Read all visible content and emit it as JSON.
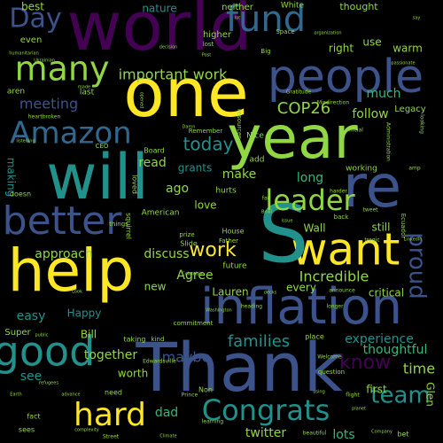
{
  "palette": {
    "background": "#000000",
    "purple": "#440154",
    "indigo": "#3b528b",
    "blue": "#31688e",
    "teal": "#21918c",
    "green": "#35b779",
    "lime": "#90d743",
    "yellow": "#fde725"
  },
  "words": [
    {
      "text": "world",
      "color": "purple",
      "weight": 100
    },
    {
      "text": "Day",
      "color": "indigo",
      "weight": 38
    },
    {
      "text": "fund",
      "color": "blue",
      "weight": 46
    },
    {
      "text": "many",
      "color": "lime",
      "weight": 44
    },
    {
      "text": "people",
      "color": "indigo",
      "weight": 62
    },
    {
      "text": "one",
      "color": "yellow",
      "weight": 92
    },
    {
      "text": "year",
      "color": "lime",
      "weight": 80
    },
    {
      "text": "will",
      "color": "teal",
      "weight": 84
    },
    {
      "text": "re",
      "color": "indigo",
      "weight": 80
    },
    {
      "text": "Amazon",
      "color": "blue",
      "weight": 40
    },
    {
      "text": "better",
      "color": "indigo",
      "weight": 54
    },
    {
      "text": "want",
      "color": "yellow",
      "weight": 58
    },
    {
      "text": "S",
      "color": "teal",
      "weight": 100
    },
    {
      "text": "help",
      "color": "yellow",
      "weight": 80
    },
    {
      "text": "inflation",
      "color": "indigo",
      "weight": 66
    },
    {
      "text": "good",
      "color": "teal",
      "weight": 52
    },
    {
      "text": "Thank",
      "color": "indigo",
      "weight": 100
    },
    {
      "text": "hard",
      "color": "yellow",
      "weight": 46
    },
    {
      "text": "Congrats",
      "color": "teal",
      "weight": 40
    },
    {
      "text": "leader",
      "color": "lime",
      "weight": 38
    },
    {
      "text": "proud",
      "color": "indigo",
      "weight": 34
    },
    {
      "text": "team",
      "color": "teal",
      "weight": 30
    },
    {
      "text": "know",
      "color": "purple",
      "weight": 28
    },
    {
      "text": "important work",
      "color": "lime",
      "weight": 20
    },
    {
      "text": "meeting",
      "color": "indigo",
      "weight": 20
    },
    {
      "text": "COP26",
      "color": "lime",
      "weight": 22
    },
    {
      "text": "today",
      "color": "teal",
      "weight": 24
    },
    {
      "text": "families",
      "color": "teal",
      "weight": 22
    },
    {
      "text": "work",
      "color": "yellow",
      "weight": 24
    },
    {
      "text": "Incredible",
      "color": "lime",
      "weight": 20
    },
    {
      "text": "follow",
      "color": "lime",
      "weight": 18
    },
    {
      "text": "long",
      "color": "green",
      "weight": 18
    },
    {
      "text": "much",
      "color": "green",
      "weight": 16
    },
    {
      "text": "approach",
      "color": "lime",
      "weight": 16
    },
    {
      "text": "discuss",
      "color": "lime",
      "weight": 16
    },
    {
      "text": "Agree",
      "color": "lime",
      "weight": 16
    },
    {
      "text": "together",
      "color": "lime",
      "weight": 16
    },
    {
      "text": "worth",
      "color": "lime",
      "weight": 14
    },
    {
      "text": "easy",
      "color": "teal",
      "weight": 18
    },
    {
      "text": "time",
      "color": "lime",
      "weight": 20
    },
    {
      "text": "experience",
      "color": "teal",
      "weight": 16
    },
    {
      "text": "thoughtful",
      "color": "green",
      "weight": 16
    },
    {
      "text": "twitter",
      "color": "lime",
      "weight": 16
    },
    {
      "text": "lots",
      "color": "green",
      "weight": 16
    },
    {
      "text": "see",
      "color": "teal",
      "weight": 16
    },
    {
      "text": "maybe",
      "color": "indigo",
      "weight": 20
    },
    {
      "text": "dad",
      "color": "green",
      "weight": 14
    },
    {
      "text": "Lauren",
      "color": "lime",
      "weight": 14
    },
    {
      "text": "Bill",
      "color": "lime",
      "weight": 14
    },
    {
      "text": "Happy",
      "color": "teal",
      "weight": 14
    },
    {
      "text": "Wall",
      "color": "lime",
      "weight": 12
    },
    {
      "text": "still",
      "color": "lime",
      "weight": 14
    },
    {
      "text": "grants",
      "color": "teal",
      "weight": 12
    },
    {
      "text": "make",
      "color": "lime",
      "weight": 14
    },
    {
      "text": "read",
      "color": "lime",
      "weight": 14
    },
    {
      "text": "ago",
      "color": "lime",
      "weight": 14
    },
    {
      "text": "making",
      "color": "teal",
      "weight": 12
    },
    {
      "text": "love",
      "color": "lime",
      "weight": 12
    },
    {
      "text": "new",
      "color": "lime",
      "weight": 12
    },
    {
      "text": "every",
      "color": "lime",
      "weight": 12
    },
    {
      "text": "first",
      "color": "lime",
      "weight": 12
    },
    {
      "text": "critical",
      "color": "lime",
      "weight": 12
    },
    {
      "text": "Glen",
      "color": "lime",
      "weight": 12
    },
    {
      "text": "best",
      "color": "lime",
      "weight": 12
    },
    {
      "text": "nature",
      "color": "teal",
      "weight": 12
    },
    {
      "text": "neither",
      "color": "lime",
      "weight": 10
    },
    {
      "text": "White",
      "color": "lime",
      "weight": 9
    },
    {
      "text": "thought",
      "color": "lime",
      "weight": 11
    },
    {
      "text": "higher",
      "color": "lime",
      "weight": 10
    },
    {
      "text": "right",
      "color": "lime",
      "weight": 12
    },
    {
      "text": "use",
      "color": "lime",
      "weight": 12
    },
    {
      "text": "warm",
      "color": "lime",
      "weight": 12
    },
    {
      "text": "even",
      "color": "lime",
      "weight": 10
    },
    {
      "text": "last",
      "color": "lime",
      "weight": 9
    },
    {
      "text": "aren",
      "color": "lime",
      "weight": 9
    },
    {
      "text": "Legacy",
      "color": "lime",
      "weight": 10
    },
    {
      "text": "Super",
      "color": "lime",
      "weight": 10
    },
    {
      "text": "future",
      "color": "lime",
      "weight": 9
    },
    {
      "text": "hurts",
      "color": "lime",
      "weight": 9
    },
    {
      "text": "add",
      "color": "lime",
      "weight": 9
    },
    {
      "text": "working",
      "color": "lime",
      "weight": 8
    },
    {
      "text": "American",
      "color": "lime",
      "weight": 9
    },
    {
      "text": "Nice",
      "color": "lime",
      "weight": 9
    },
    {
      "text": "things",
      "color": "lime",
      "weight": 7
    },
    {
      "text": "doesn",
      "color": "lime",
      "weight": 8
    },
    {
      "text": "squirrel",
      "color": "lime",
      "weight": 8
    },
    {
      "text": "Board",
      "color": "lime",
      "weight": 8
    },
    {
      "text": "CEO",
      "color": "lime",
      "weight": 7
    },
    {
      "text": "loved",
      "color": "lime",
      "weight": 8
    },
    {
      "text": "Remember",
      "color": "lime",
      "weight": 7
    },
    {
      "text": "House",
      "color": "lime",
      "weight": 8
    },
    {
      "text": "Father",
      "color": "lime",
      "weight": 8
    },
    {
      "text": "Slide",
      "color": "lime",
      "weight": 7
    },
    {
      "text": "prize",
      "color": "lime",
      "weight": 8
    },
    {
      "text": "taking",
      "color": "lime",
      "weight": 7
    },
    {
      "text": "kind",
      "color": "lime",
      "weight": 8
    },
    {
      "text": "need",
      "color": "lime",
      "weight": 7
    },
    {
      "text": "Non",
      "color": "lime",
      "weight": 8
    },
    {
      "text": "fact",
      "color": "lime",
      "weight": 8
    },
    {
      "text": "sees",
      "color": "lime",
      "weight": 8
    },
    {
      "text": "Street",
      "color": "lime",
      "weight": 8
    },
    {
      "text": "place",
      "color": "lime",
      "weight": 6
    },
    {
      "text": "flight",
      "color": "lime",
      "weight": 8
    },
    {
      "text": "Welcome",
      "color": "lime",
      "weight": 6
    },
    {
      "text": "question",
      "color": "lime",
      "weight": 6
    },
    {
      "text": "bet",
      "color": "lime",
      "weight": 7
    },
    {
      "text": "beautiful",
      "color": "lime",
      "weight": 8
    },
    {
      "text": "Prince",
      "color": "lime",
      "weight": 6
    },
    {
      "text": "lost",
      "color": "lime",
      "weight": 6
    },
    {
      "text": "Space",
      "color": "lime",
      "weight": 7
    },
    {
      "text": "Big",
      "color": "lime",
      "weight": 7
    },
    {
      "text": "decision",
      "color": "lime",
      "weight": 7
    },
    {
      "text": "organization",
      "color": "lime",
      "weight": 5
    },
    {
      "text": "passionate",
      "color": "lime",
      "weight": 5
    },
    {
      "text": "Ukrainian",
      "color": "lime",
      "weight": 5
    },
    {
      "text": "humanitarian",
      "color": "lime",
      "weight": 5
    },
    {
      "text": "Gratitude",
      "color": "lime",
      "weight": 5
    },
    {
      "text": "Misdirection",
      "color": "lime",
      "weight": 6
    },
    {
      "text": "official",
      "color": "lime",
      "weight": 6
    },
    {
      "text": "Damn",
      "color": "lime",
      "weight": 6
    },
    {
      "text": "heartbroken",
      "color": "lime",
      "weight": 5
    },
    {
      "text": "resources",
      "color": "lime",
      "weight": 5
    },
    {
      "text": "Administration",
      "color": "lime",
      "weight": 6
    },
    {
      "text": "looking",
      "color": "lime",
      "weight": 7
    },
    {
      "text": "far",
      "color": "lime",
      "weight": 6
    },
    {
      "text": "back",
      "color": "lime",
      "weight": 6
    },
    {
      "text": "harder",
      "color": "lime",
      "weight": 6
    },
    {
      "text": "amp",
      "color": "lime",
      "weight": 7
    },
    {
      "text": "tweet",
      "color": "lime",
      "weight": 6
    },
    {
      "text": "LinkedIn",
      "color": "lime",
      "weight": 6
    },
    {
      "text": "tragic",
      "color": "lime",
      "weight": 6
    },
    {
      "text": "Ecuador",
      "color": "lime",
      "weight": 5
    },
    {
      "text": "decks",
      "color": "lime",
      "weight": 6
    },
    {
      "text": "Look",
      "color": "lime",
      "weight": 7
    },
    {
      "text": "Colombia",
      "color": "lime",
      "weight": 5
    },
    {
      "text": "commitment",
      "color": "lime",
      "weight": 5
    },
    {
      "text": "Edwardsville",
      "color": "lime",
      "weight": 5
    },
    {
      "text": "public",
      "color": "lime",
      "weight": 7
    },
    {
      "text": "refugees",
      "color": "lime",
      "weight": 6
    },
    {
      "text": "heading",
      "color": "lime",
      "weight": 5
    },
    {
      "text": "learning",
      "color": "lime",
      "weight": 5
    },
    {
      "text": "planet",
      "color": "lime",
      "weight": 6
    },
    {
      "text": "Earth",
      "color": "lime",
      "weight": 6
    },
    {
      "text": "advance",
      "color": "lime",
      "weight": 5
    },
    {
      "text": "complexity",
      "color": "lime",
      "weight": 5
    },
    {
      "text": "Climate",
      "color": "lime",
      "weight": 5
    },
    {
      "text": "using",
      "color": "lime",
      "weight": 5
    },
    {
      "text": "Company",
      "color": "lime",
      "weight": 5
    },
    {
      "text": "Washington",
      "color": "lime",
      "weight": 5
    },
    {
      "text": "Bowl",
      "color": "lime",
      "weight": 5
    },
    {
      "text": "issue",
      "color": "lime",
      "weight": 5
    },
    {
      "text": "longer",
      "color": "lime",
      "weight": 5
    },
    {
      "text": "announce",
      "color": "lime",
      "weight": 5
    },
    {
      "text": "listening",
      "color": "lime",
      "weight": 5
    },
    {
      "text": "say",
      "color": "lime",
      "weight": 6
    },
    {
      "text": "lot",
      "color": "lime",
      "weight": 6
    },
    {
      "text": "made",
      "color": "lime",
      "weight": 5
    },
    {
      "text": "Post",
      "color": "lime",
      "weight": 5
    },
    {
      "text": "opened",
      "color": "lime",
      "weight": 5
    },
    {
      "text": "great",
      "color": "lime",
      "weight": 5
    },
    {
      "text": "heart",
      "color": "lime",
      "weight": 5
    },
    {
      "text": "largest",
      "color": "lime",
      "weight": 5
    }
  ]
}
